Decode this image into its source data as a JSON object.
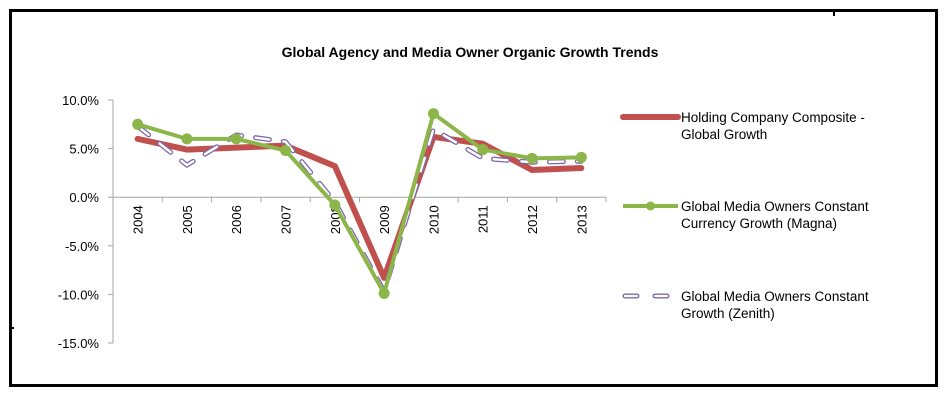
{
  "chart_data": {
    "type": "line",
    "title": "Global Agency and Media Owner Organic Growth Trends",
    "xlabel": "",
    "ylabel": "",
    "categories": [
      "2004",
      "2005",
      "2006",
      "2007",
      "2008",
      "2009",
      "2010",
      "2011",
      "2012",
      "2013"
    ],
    "ylim": [
      -15,
      10
    ],
    "yticks": [
      10,
      5,
      0,
      -5,
      -10,
      -15
    ],
    "ytick_labels": [
      "10.0%",
      "5.0%",
      "0.0%",
      "-5.0%",
      "-10.0%",
      "-15.0%"
    ],
    "grid": false,
    "legend_position": "right",
    "series": [
      {
        "name": "Holding Company Composite - Global Growth",
        "legend_lines": [
          "Holding Company Composite -",
          "Global Growth"
        ],
        "color": "#C0504D",
        "style": "thick-solid",
        "values": [
          6.0,
          4.9,
          5.1,
          5.3,
          3.2,
          -8.3,
          6.2,
          5.5,
          2.8,
          3.0
        ]
      },
      {
        "name": "Global Media Owners Constant Currency Growth (Magna)",
        "legend_lines": [
          "Global Media Owners Constant",
          "Currency Growth (Magna)"
        ],
        "color": "#8DB64A",
        "style": "solid-markers",
        "values": [
          7.5,
          6.0,
          6.0,
          4.8,
          -0.8,
          -9.9,
          8.6,
          4.9,
          4.0,
          4.1
        ]
      },
      {
        "name": "Global Media Owners Constant Growth (Zenith)",
        "legend_lines": [
          "Global Media Owners Constant",
          "Growth (Zenith)"
        ],
        "color": "#7E69A8",
        "style": "dashed-outline",
        "values": [
          7.3,
          3.3,
          6.4,
          5.7,
          -0.5,
          -9.7,
          7.0,
          4.0,
          3.6,
          3.7
        ]
      }
    ]
  }
}
